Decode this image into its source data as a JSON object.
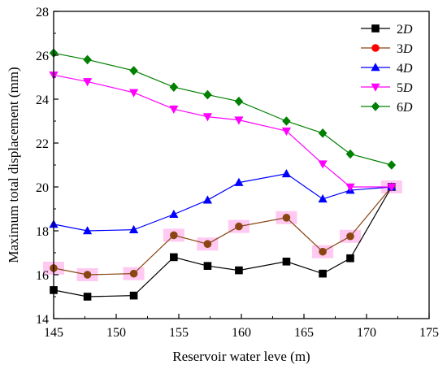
{
  "chart_data": {
    "type": "line",
    "xlabel": "Reservoir water leve (m)",
    "ylabel": "Maximum total displacement (mm)",
    "xlim": [
      145,
      175
    ],
    "ylim": [
      14,
      28
    ],
    "xticks": [
      145,
      150,
      155,
      160,
      165,
      170,
      175
    ],
    "yticks": [
      14,
      16,
      18,
      20,
      22,
      24,
      26,
      28
    ],
    "x": [
      145,
      147.7,
      151.4,
      154.6,
      157.3,
      159.8,
      163.6,
      166.5,
      168.7,
      172
    ],
    "legend_position": "top-right",
    "series": [
      {
        "name": "2",
        "name_suffix": "D",
        "marker": "square",
        "color": "#000000",
        "marker_color": "#000000",
        "values": [
          15.3,
          15.0,
          15.05,
          16.8,
          16.4,
          16.2,
          16.6,
          16.05,
          16.75,
          20.0
        ]
      },
      {
        "name": "3",
        "name_suffix": "D",
        "marker": "circle",
        "color": "#8B4513",
        "marker_color": "#8B4513",
        "values": [
          16.3,
          16.0,
          16.05,
          17.8,
          17.4,
          18.2,
          18.6,
          17.05,
          17.75,
          20.0
        ]
      },
      {
        "name": "4",
        "name_suffix": "D",
        "marker": "triangle-up",
        "color": "#0000FF",
        "marker_color": "#0000FF",
        "values": [
          18.3,
          18.0,
          18.05,
          18.75,
          19.4,
          20.2,
          20.6,
          19.45,
          19.85,
          20.0
        ]
      },
      {
        "name": "5",
        "name_suffix": "D",
        "marker": "triangle-down",
        "color": "#FF00FF",
        "marker_color": "#FF00FF",
        "values": [
          25.1,
          24.8,
          24.3,
          23.55,
          23.2,
          23.05,
          22.55,
          21.05,
          20.0,
          20.0
        ]
      },
      {
        "name": "6",
        "name_suffix": "D",
        "marker": "diamond",
        "color": "#008000",
        "marker_color": "#008000",
        "values": [
          26.1,
          25.8,
          25.3,
          24.55,
          24.2,
          23.9,
          23.0,
          22.45,
          21.5,
          21.0
        ]
      }
    ],
    "legend_marker_colors": [
      "#000000",
      "#FF0000",
      "#0000FF",
      "#FF00FF",
      "#008000"
    ],
    "highlight_color": "#FFC0F0"
  }
}
